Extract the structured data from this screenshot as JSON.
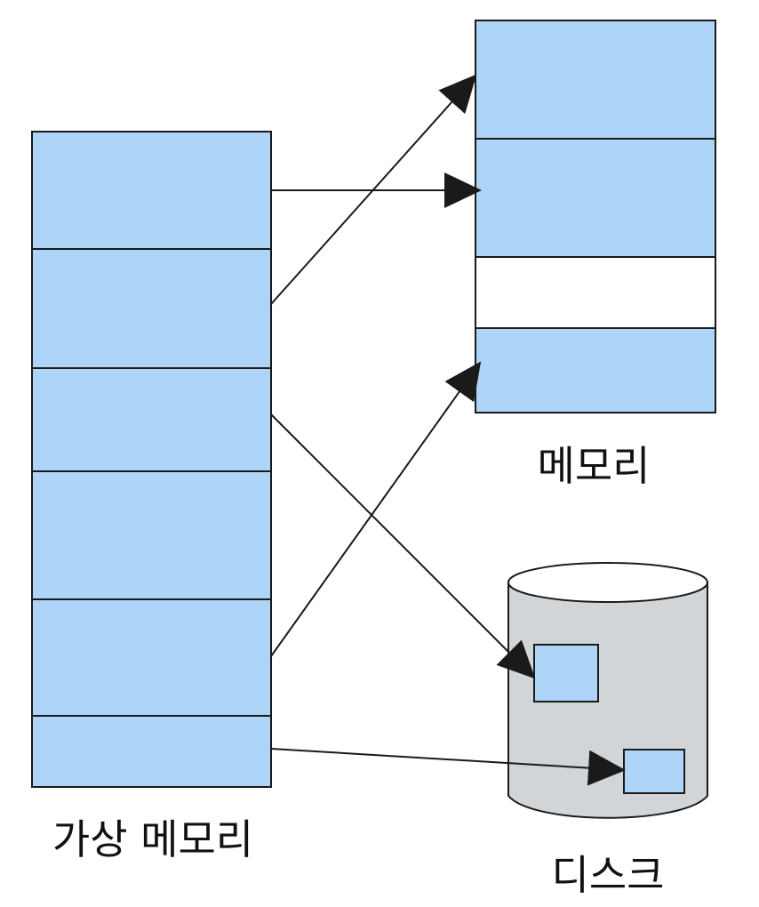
{
  "labels": {
    "virtual_memory": "가상 메모리",
    "memory": "메모리",
    "disk": "디스크"
  },
  "colors": {
    "page_fill": "#aed4f8",
    "empty_frame_fill": "#ffffff",
    "disk_fill": "#d2d5d8",
    "stroke": "#1a1a1a"
  },
  "virtual_memory_pages": 6,
  "memory_frames": [
    "used",
    "used",
    "empty",
    "used"
  ],
  "disk_blocks": 2,
  "mappings": [
    {
      "from_page": 1,
      "to": "memory",
      "frame": 2
    },
    {
      "from_page": 2,
      "to": "memory",
      "frame": 1
    },
    {
      "from_page": 3,
      "to": "disk",
      "block": 1
    },
    {
      "from_page": 5,
      "to": "memory",
      "frame": 4
    },
    {
      "from_page": 6,
      "to": "disk",
      "block": 2
    }
  ]
}
